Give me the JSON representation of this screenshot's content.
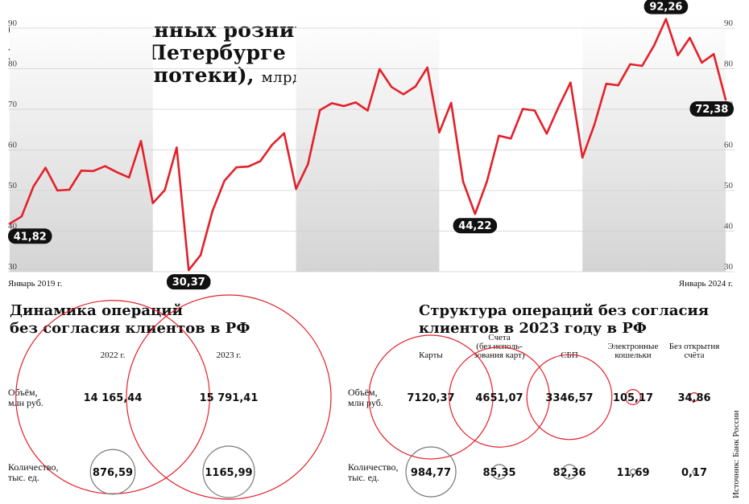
{
  "chart_data": [
    {
      "type": "line",
      "title_lines": [
        "Объём выданных розничных",
        "кредитов в Петербурге",
        "(без учёта ипотеки),"
      ],
      "unit": "млрд руб.",
      "ylim": [
        30,
        92.26
      ],
      "yticks": [
        30,
        40,
        50,
        60,
        70,
        80,
        90
      ],
      "x_start_label": "Январь 2019 г.",
      "x_end_label": "Январь 2024 г.",
      "color": "#e3202a",
      "band_color": "#d4d4d4",
      "values": [
        41.82,
        43.6,
        51,
        55.6,
        50,
        50.2,
        54.9,
        54.8,
        56,
        54.5,
        53.2,
        62.2,
        46.9,
        50.1,
        60.6,
        30.37,
        34.1,
        45,
        52.4,
        55.7,
        55.9,
        57.2,
        61.3,
        64.1,
        50.4,
        56.5,
        69.8,
        71.5,
        70.8,
        71.7,
        69.7,
        79.9,
        75.5,
        73.7,
        75.6,
        80.3,
        64.3,
        71.6,
        52.2,
        44.22,
        52.3,
        63.5,
        62.8,
        70.1,
        69.7,
        64,
        70.6,
        76.6,
        58.1,
        66.2,
        76.3,
        75.9,
        81.1,
        80.7,
        85.7,
        92.26,
        83.3,
        87.6,
        81.5,
        83.6,
        72.38
      ],
      "callouts": [
        {
          "label": "41,82",
          "index": 0
        },
        {
          "label": "30,37",
          "index": 15
        },
        {
          "label": "44,22",
          "index": 39
        },
        {
          "label": "92,26",
          "index": 55
        },
        {
          "label": "72,38",
          "index": 60
        }
      ]
    },
    {
      "type": "bubble",
      "title_lines": [
        "Динамика операций",
        "без согласия клиентов в РФ"
      ],
      "columns": [
        "2022 г.",
        "2023 г."
      ],
      "rows": [
        {
          "label_lines": [
            "Объём,",
            "млн руб."
          ],
          "values": [
            14165.44,
            15791.41
          ],
          "labels": [
            "14 165,44",
            "15 791,41"
          ],
          "color": "#e3202a"
        },
        {
          "label_lines": [
            "Количество,",
            "тыс. ед."
          ],
          "values": [
            876.59,
            1165.99
          ],
          "labels": [
            "876,59",
            "1165,99"
          ],
          "color": "#777777"
        }
      ]
    },
    {
      "type": "bubble",
      "title_lines": [
        "Структура операций без согласия",
        "клиентов в 2023 году в РФ"
      ],
      "columns": [
        {
          "lines": [
            "Карты"
          ]
        },
        {
          "lines": [
            "Счета",
            "(без исполь-",
            "зования карт)"
          ]
        },
        {
          "lines": [
            "СБП"
          ]
        },
        {
          "lines": [
            "Электронные",
            "кошельки"
          ]
        },
        {
          "lines": [
            "Без открытия",
            "счёта"
          ]
        }
      ],
      "rows": [
        {
          "label_lines": [
            "Объём,",
            "млн руб."
          ],
          "values": [
            7120.37,
            4651.07,
            3346.57,
            105.17,
            34.86
          ],
          "labels": [
            "7120,37",
            "4651,07",
            "3346,57",
            "105,17",
            "34,86"
          ],
          "color": "#e3202a"
        },
        {
          "label_lines": [
            "Количество,",
            "тыс. ед."
          ],
          "values": [
            984.77,
            85.35,
            82.36,
            11.69,
            0.17
          ],
          "labels": [
            "984,77",
            "85,35",
            "82,36",
            "11,69",
            "0,17"
          ],
          "color": "#777777"
        }
      ]
    }
  ],
  "source": "Источник: Банк России"
}
